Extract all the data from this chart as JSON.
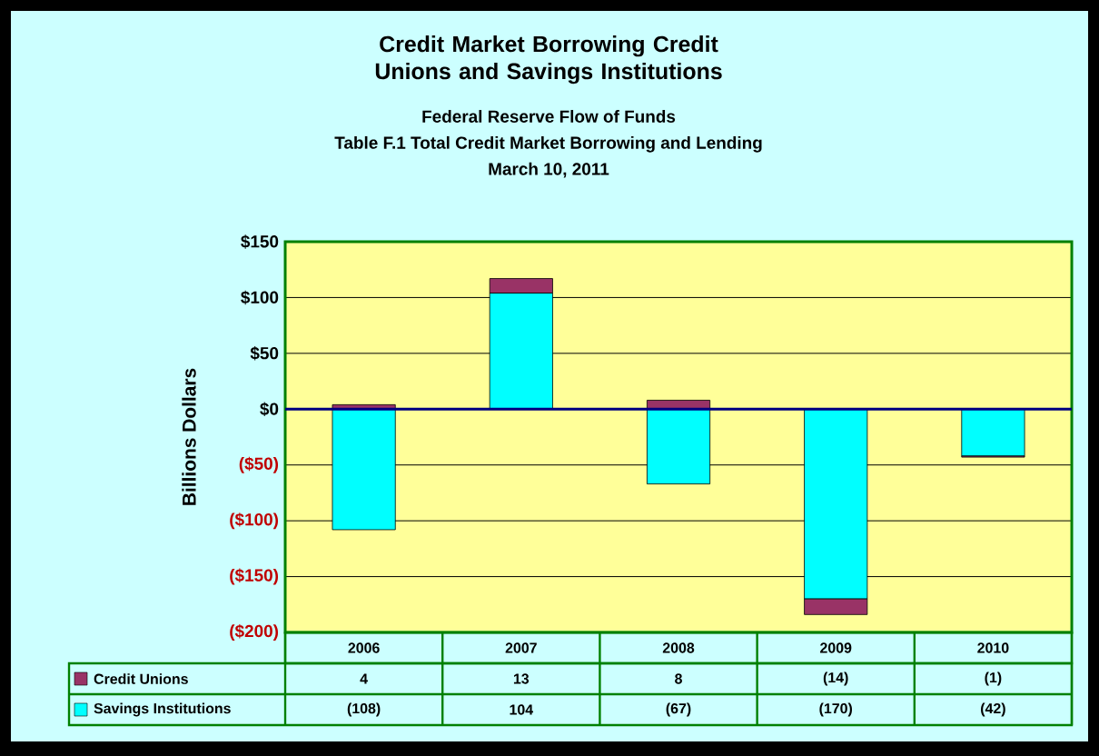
{
  "chart_data": {
    "type": "bar",
    "title": "Credit Market Borrowing Credit Unions and Savings Institutions",
    "subtitle": "Federal Reserve Flow of Funds",
    "annotations": [
      "Table F.1 Total Credit Market Borrowing and Lending",
      "March 10, 2011"
    ],
    "ylabel": "Billions Dollars",
    "categories": [
      "2006",
      "2007",
      "2008",
      "2009",
      "2010"
    ],
    "stacked": true,
    "series": [
      {
        "name": "Savings Institutions",
        "color": "#00ffff",
        "values": [
          -108,
          104,
          -67,
          -170,
          -42
        ],
        "value_labels": [
          "(108)",
          "104",
          "(67)",
          "(170)",
          "(42)"
        ]
      },
      {
        "name": "Credit Unions",
        "color": "#993366",
        "values": [
          4,
          13,
          8,
          -14,
          -1
        ],
        "value_labels": [
          "4",
          "13",
          "8",
          "(14)",
          "(1)"
        ]
      }
    ],
    "ylim": [
      -200,
      150
    ],
    "yticks": [
      {
        "value": -200,
        "label": "($200)"
      },
      {
        "value": -150,
        "label": "($150)"
      },
      {
        "value": -100,
        "label": "($100)"
      },
      {
        "value": -50,
        "label": "($50)"
      },
      {
        "value": 0,
        "label": "$0"
      },
      {
        "value": 50,
        "label": "$50"
      },
      {
        "value": 100,
        "label": "$100"
      },
      {
        "value": 150,
        "label": "$150"
      }
    ],
    "grid": "y",
    "ref_lines": [
      {
        "axis": "y",
        "value": 0,
        "color": "#000080"
      }
    ],
    "legend": "bottom"
  }
}
